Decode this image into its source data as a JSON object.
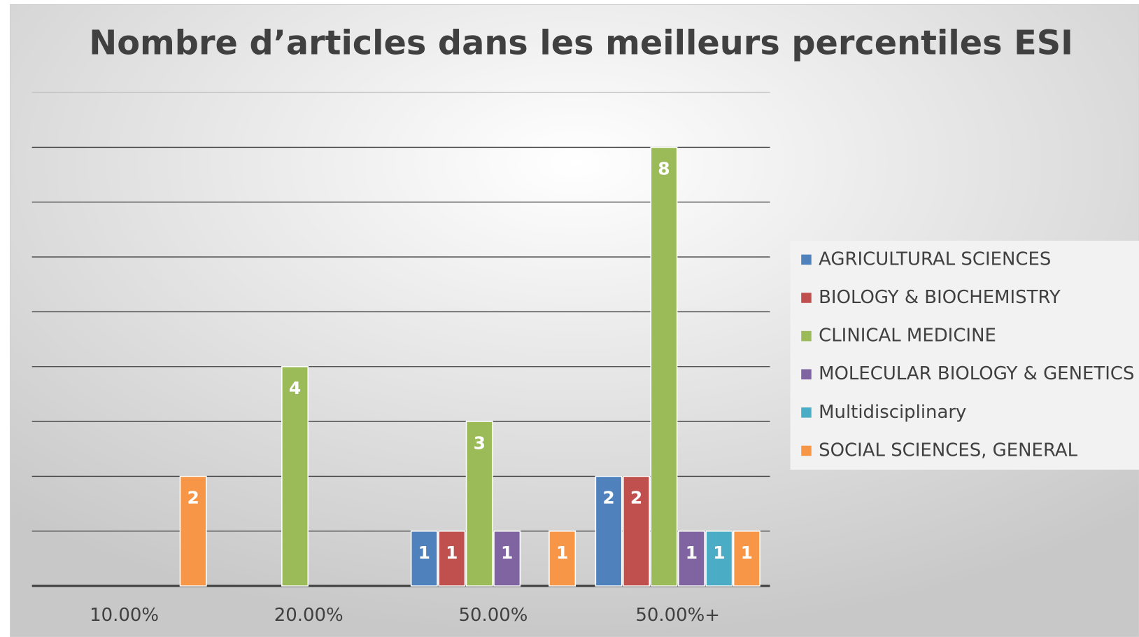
{
  "chart_data": {
    "type": "bar",
    "title": "Nombre d’articles dans les meilleurs percentiles ESI",
    "categories": [
      "10.00%",
      "20.00%",
      "50.00%",
      "50.00%+"
    ],
    "series": [
      {
        "name": "AGRICULTURAL SCIENCES",
        "color": "#4f81bd",
        "values": [
          null,
          null,
          1,
          2
        ]
      },
      {
        "name": "BIOLOGY & BIOCHEMISTRY",
        "color": "#c0504d",
        "values": [
          null,
          null,
          1,
          2
        ]
      },
      {
        "name": "CLINICAL MEDICINE",
        "color": "#9bbb59",
        "values": [
          null,
          4,
          3,
          8
        ]
      },
      {
        "name": "MOLECULAR BIOLOGY & GENETICS",
        "color": "#8064a2",
        "values": [
          null,
          null,
          1,
          1
        ]
      },
      {
        "name": "Multidisciplinary",
        "color": "#4bacc6",
        "values": [
          null,
          null,
          null,
          1
        ]
      },
      {
        "name": "SOCIAL SCIENCES, GENERAL",
        "color": "#f79646",
        "values": [
          2,
          null,
          1,
          1
        ]
      }
    ],
    "ylim": [
      0,
      9
    ],
    "yticks": [
      0,
      1,
      2,
      3,
      4,
      5,
      6,
      7,
      8,
      9
    ],
    "grid": true,
    "legend": "right"
  }
}
